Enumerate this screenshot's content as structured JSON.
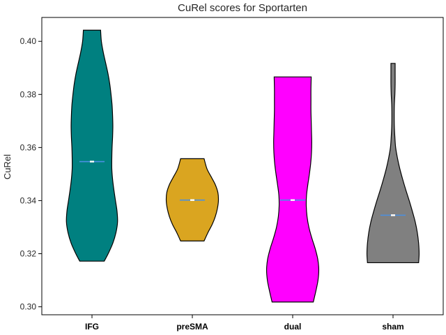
{
  "chart_data": {
    "type": "violin",
    "title": "CuRel scores for Sportarten",
    "xlabel": "",
    "ylabel": "CuRel",
    "ylim": [
      0.297,
      0.409
    ],
    "yticks": [
      0.3,
      0.32,
      0.34,
      0.36,
      0.38,
      0.4
    ],
    "ytick_labels": [
      "0.30",
      "0.32",
      "0.34",
      "0.36",
      "0.38",
      "0.40"
    ],
    "grid": false,
    "categories": [
      "IFG",
      "preSMA",
      "dual",
      "sham"
    ],
    "series": [
      {
        "category": "IFG",
        "color": "#008080",
        "min": 0.3172,
        "max": 0.4042,
        "median": 0.3547,
        "profile": [
          [
            0.3172,
            0.47
          ],
          [
            0.32,
            0.62
          ],
          [
            0.324,
            0.8
          ],
          [
            0.328,
            0.92
          ],
          [
            0.332,
            0.98
          ],
          [
            0.336,
            0.96
          ],
          [
            0.34,
            0.9
          ],
          [
            0.344,
            0.84
          ],
          [
            0.348,
            0.79
          ],
          [
            0.352,
            0.76
          ],
          [
            0.356,
            0.76
          ],
          [
            0.36,
            0.77
          ],
          [
            0.364,
            0.79
          ],
          [
            0.368,
            0.8
          ],
          [
            0.372,
            0.79
          ],
          [
            0.376,
            0.77
          ],
          [
            0.38,
            0.73
          ],
          [
            0.384,
            0.68
          ],
          [
            0.388,
            0.61
          ],
          [
            0.392,
            0.52
          ],
          [
            0.396,
            0.43
          ],
          [
            0.4,
            0.36
          ],
          [
            0.4042,
            0.33
          ]
        ]
      },
      {
        "category": "preSMA",
        "color": "#DAA520",
        "min": 0.3248,
        "max": 0.3558,
        "median": 0.3402,
        "profile": [
          [
            0.3248,
            0.45
          ],
          [
            0.328,
            0.6
          ],
          [
            0.331,
            0.76
          ],
          [
            0.334,
            0.88
          ],
          [
            0.337,
            0.96
          ],
          [
            0.34,
            1.0
          ],
          [
            0.343,
            0.98
          ],
          [
            0.346,
            0.88
          ],
          [
            0.349,
            0.72
          ],
          [
            0.352,
            0.56
          ],
          [
            0.3558,
            0.45
          ]
        ]
      },
      {
        "category": "dual",
        "color": "#FF00FF",
        "min": 0.3018,
        "max": 0.3866,
        "median": 0.3402,
        "profile": [
          [
            0.3018,
            0.79
          ],
          [
            0.306,
            0.89
          ],
          [
            0.31,
            0.97
          ],
          [
            0.314,
            1.0
          ],
          [
            0.318,
            0.96
          ],
          [
            0.322,
            0.86
          ],
          [
            0.326,
            0.73
          ],
          [
            0.33,
            0.62
          ],
          [
            0.334,
            0.55
          ],
          [
            0.338,
            0.52
          ],
          [
            0.342,
            0.53
          ],
          [
            0.346,
            0.58
          ],
          [
            0.35,
            0.64
          ],
          [
            0.354,
            0.69
          ],
          [
            0.358,
            0.72
          ],
          [
            0.362,
            0.73
          ],
          [
            0.366,
            0.72
          ],
          [
            0.37,
            0.71
          ],
          [
            0.374,
            0.7
          ],
          [
            0.378,
            0.7
          ],
          [
            0.382,
            0.7
          ],
          [
            0.3866,
            0.71
          ]
        ]
      },
      {
        "category": "sham",
        "color": "#808080",
        "min": 0.3166,
        "max": 0.3917,
        "median": 0.3345,
        "profile": [
          [
            0.3166,
            0.98
          ],
          [
            0.32,
            1.0
          ],
          [
            0.324,
            0.98
          ],
          [
            0.328,
            0.93
          ],
          [
            0.332,
            0.85
          ],
          [
            0.336,
            0.74
          ],
          [
            0.34,
            0.62
          ],
          [
            0.344,
            0.49
          ],
          [
            0.348,
            0.37
          ],
          [
            0.352,
            0.26
          ],
          [
            0.356,
            0.17
          ],
          [
            0.36,
            0.1
          ],
          [
            0.364,
            0.07
          ],
          [
            0.368,
            0.05
          ],
          [
            0.372,
            0.045
          ],
          [
            0.376,
            0.05
          ],
          [
            0.38,
            0.07
          ],
          [
            0.384,
            0.08
          ],
          [
            0.388,
            0.08
          ],
          [
            0.3917,
            0.08
          ]
        ]
      }
    ]
  }
}
